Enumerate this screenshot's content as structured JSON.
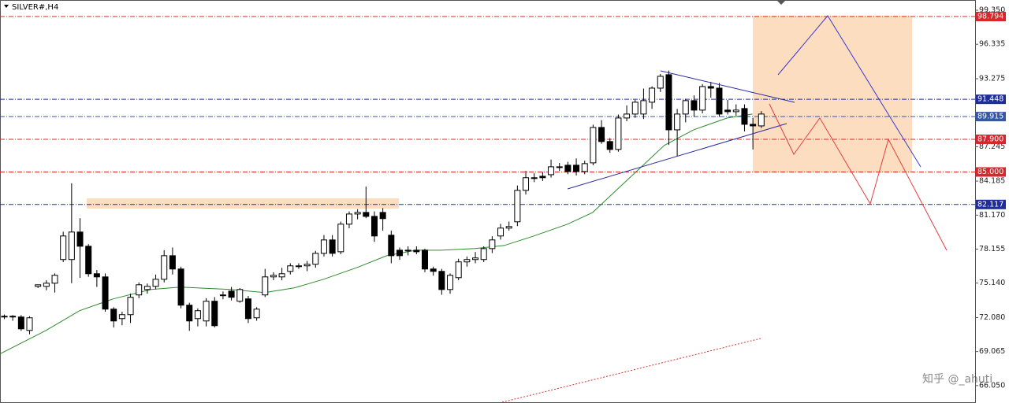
{
  "chart_data": {
    "type": "candlestick",
    "title": "SILVER#,H4",
    "watermark": "知乎 @_ahuti",
    "ylim": [
      64.5,
      100.26
    ],
    "yticks": [
      {
        "value": 99.35,
        "label": "99.350"
      },
      96.335,
      93.275,
      87.245,
      84.185,
      {
        "value": 81.17,
        "label": "81.170"
      },
      78.155,
      {
        "value": 75.14,
        "label": "75.140"
      },
      {
        "value": 72.08,
        "label": "72.080"
      },
      69.065,
      {
        "value": 66.05,
        "label": "66.050"
      }
    ],
    "levels": [
      {
        "value": 98.794,
        "label": "98.794",
        "color": "#d9262b"
      },
      {
        "value": 91.448,
        "label": "91.448",
        "color": "#1f2d9c"
      },
      {
        "value": 89.915,
        "label": "89.915",
        "color": "#3657a8"
      },
      {
        "value": 87.9,
        "label": "87.900",
        "color": "#d9262b"
      },
      {
        "value": 85.0,
        "label": "85.000",
        "color": "#d9262b"
      },
      {
        "value": 82.117,
        "label": "82.117",
        "color": "#1f2d9c"
      }
    ],
    "up_color": "#ffffff",
    "down_color": "#000000",
    "ohlc": [
      [
        72.2,
        72.35,
        71.95,
        72.13
      ],
      [
        72.13,
        72.3,
        71.8,
        72.2
      ],
      [
        72.13,
        72.3,
        70.9,
        71.08
      ],
      [
        70.94,
        72.2,
        70.6,
        72.06
      ],
      [
        74.85,
        75.0,
        74.7,
        74.99
      ],
      [
        74.85,
        75.4,
        74.5,
        75.13
      ],
      [
        75.13,
        76.0,
        74.3,
        75.83
      ],
      [
        77.23,
        79.7,
        77.0,
        79.32
      ],
      [
        77.23,
        84.0,
        75.13,
        79.67
      ],
      [
        79.67,
        80.9,
        75.6,
        78.41
      ],
      [
        78.41,
        78.6,
        75.7,
        75.97
      ],
      [
        75.97,
        76.3,
        74.8,
        75.69
      ],
      [
        75.69,
        76.0,
        72.6,
        72.83
      ],
      [
        72.83,
        73.0,
        71.2,
        71.78
      ],
      [
        71.99,
        72.6,
        71.4,
        72.34
      ],
      [
        72.34,
        74.2,
        71.6,
        73.88
      ],
      [
        74.09,
        75.2,
        73.8,
        74.99
      ],
      [
        74.57,
        75.1,
        74.2,
        74.85
      ],
      [
        74.85,
        75.9,
        74.6,
        75.48
      ],
      [
        75.48,
        78.06,
        75.2,
        77.57
      ],
      [
        77.57,
        78.3,
        75.9,
        76.39
      ],
      [
        76.39,
        76.6,
        72.9,
        73.18
      ],
      [
        73.18,
        73.4,
        70.9,
        71.78
      ],
      [
        71.99,
        72.9,
        71.3,
        72.69
      ],
      [
        71.78,
        73.8,
        71.3,
        73.53
      ],
      [
        73.53,
        73.9,
        71.2,
        71.36
      ],
      [
        74.09,
        74.4,
        73.7,
        74.09
      ],
      [
        74.43,
        74.8,
        73.6,
        73.88
      ],
      [
        73.53,
        74.7,
        73.4,
        74.57
      ],
      [
        73.74,
        74.0,
        71.6,
        71.99
      ],
      [
        72.06,
        73.0,
        71.8,
        72.83
      ],
      [
        74.09,
        76.4,
        73.9,
        75.69
      ],
      [
        75.69,
        76.1,
        75.4,
        75.83
      ],
      [
        75.69,
        76.5,
        75.4,
        75.97
      ],
      [
        76.18,
        76.9,
        75.9,
        76.67
      ],
      [
        76.67,
        76.9,
        76.4,
        76.67
      ],
      [
        76.67,
        77.1,
        76.2,
        76.81
      ],
      [
        76.81,
        78.0,
        76.5,
        77.78
      ],
      [
        77.78,
        79.4,
        77.5,
        78.97
      ],
      [
        78.97,
        79.4,
        77.5,
        77.78
      ],
      [
        77.92,
        80.6,
        77.7,
        80.37
      ],
      [
        80.37,
        81.5,
        80.0,
        81.27
      ],
      [
        81.27,
        81.7,
        80.8,
        81.41
      ],
      [
        81.41,
        83.7,
        80.9,
        81.06
      ],
      [
        81.06,
        81.5,
        78.8,
        79.32
      ],
      [
        81.41,
        81.8,
        79.8,
        80.86
      ],
      [
        79.39,
        79.8,
        76.9,
        77.57
      ],
      [
        78.06,
        78.3,
        77.2,
        77.57
      ],
      [
        78.06,
        78.4,
        77.6,
        78.06
      ],
      [
        78.06,
        78.4,
        77.7,
        77.92
      ],
      [
        78.06,
        78.2,
        76.1,
        76.39
      ],
      [
        76.39,
        76.6,
        75.8,
        76.18
      ],
      [
        76.18,
        76.4,
        74.1,
        74.57
      ],
      [
        74.57,
        76.0,
        74.2,
        75.83
      ],
      [
        75.62,
        77.3,
        75.4,
        77.02
      ],
      [
        77.02,
        77.5,
        76.6,
        77.23
      ],
      [
        77.23,
        77.9,
        76.9,
        77.37
      ],
      [
        77.23,
        78.4,
        77.0,
        78.2
      ],
      [
        78.2,
        79.3,
        77.8,
        78.97
      ],
      [
        79.32,
        80.4,
        79.0,
        80.02
      ],
      [
        80.02,
        80.6,
        79.8,
        80.16
      ],
      [
        80.58,
        83.8,
        80.2,
        83.37
      ],
      [
        83.37,
        85.1,
        83.0,
        84.49
      ],
      [
        84.49,
        84.9,
        84.1,
        84.49
      ],
      [
        84.62,
        85.0,
        84.2,
        84.49
      ],
      [
        84.76,
        86.1,
        84.5,
        85.46
      ],
      [
        85.46,
        85.8,
        85.1,
        85.46
      ],
      [
        85.6,
        85.9,
        84.8,
        85.04
      ],
      [
        85.6,
        86.2,
        84.7,
        85.04
      ],
      [
        85.04,
        86.0,
        84.8,
        85.74
      ],
      [
        85.81,
        89.2,
        85.6,
        88.95
      ],
      [
        88.95,
        89.6,
        87.5,
        87.7
      ],
      [
        87.7,
        88.0,
        86.7,
        87.0
      ],
      [
        87.0,
        90.1,
        86.8,
        89.79
      ],
      [
        89.79,
        90.9,
        89.5,
        90.14
      ],
      [
        90.14,
        91.4,
        89.8,
        91.19
      ],
      [
        90.14,
        92.4,
        89.7,
        91.33
      ],
      [
        91.19,
        92.6,
        90.6,
        92.44
      ],
      [
        92.44,
        93.7,
        92.1,
        93.49
      ],
      [
        93.63,
        94.0,
        87.4,
        88.74
      ],
      [
        88.74,
        90.6,
        86.4,
        90.14
      ],
      [
        90.14,
        91.5,
        89.4,
        91.33
      ],
      [
        91.33,
        91.8,
        89.9,
        90.49
      ],
      [
        90.49,
        92.8,
        90.2,
        92.58
      ],
      [
        92.58,
        93.0,
        91.6,
        92.44
      ],
      [
        92.44,
        92.9,
        89.9,
        90.14
      ],
      [
        90.49,
        91.4,
        90.1,
        90.35
      ],
      [
        90.35,
        91.0,
        90.0,
        90.49
      ],
      [
        90.63,
        91.0,
        88.6,
        89.23
      ],
      [
        89.23,
        89.8,
        87.0,
        89.09
      ],
      [
        89.09,
        90.4,
        88.9,
        90.14
      ]
    ],
    "ma_color": "#2e8b2e",
    "ma_x": [
      -0.5,
      5,
      9,
      13,
      17.5,
      21,
      27,
      31,
      34.5,
      38,
      42,
      45.5,
      49,
      52,
      56,
      59.5,
      63,
      67,
      70,
      73,
      76,
      78.5,
      82,
      86,
      89
    ],
    "ma": [
      68.85,
      70.94,
      72.69,
      73.74,
      74.57,
      74.78,
      74.57,
      74.29,
      74.71,
      75.48,
      76.53,
      77.57,
      78.06,
      78.06,
      78.2,
      78.48,
      79.32,
      80.37,
      81.41,
      83.51,
      85.6,
      87.35,
      88.74,
      89.79,
      90.14
    ]
  }
}
